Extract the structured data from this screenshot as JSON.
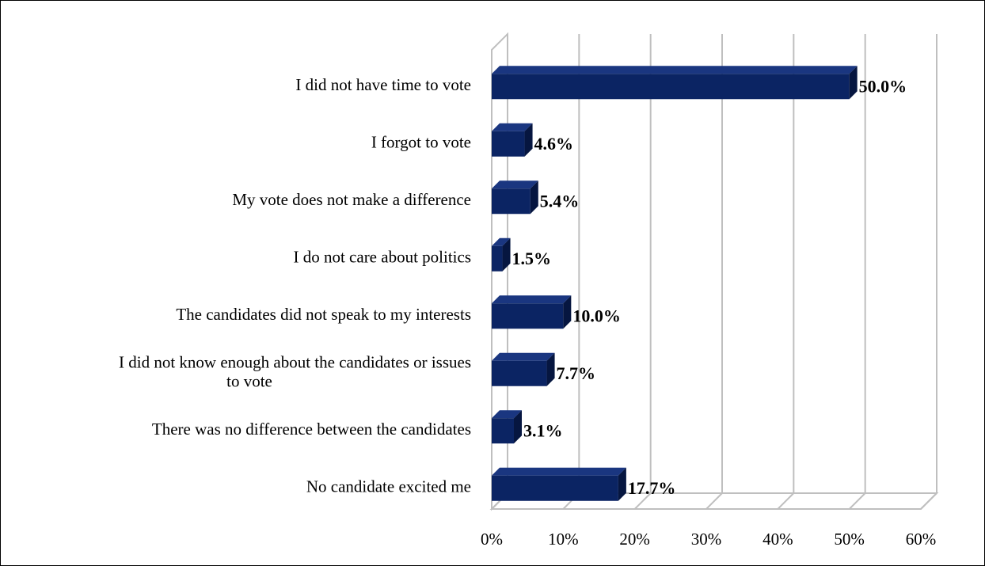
{
  "chart_data": {
    "type": "bar",
    "orientation": "horizontal",
    "style": "3d",
    "categories": [
      "I did not have time to vote",
      "I forgot to vote",
      "My vote does not make a difference",
      "I do not care about politics",
      "The candidates did not speak to my interests",
      "I did not know enough about the candidates or issues to vote",
      "There was no difference between the candidates",
      "No candidate excited me"
    ],
    "values": [
      50.0,
      4.6,
      5.4,
      1.5,
      10.0,
      7.7,
      3.1,
      17.7
    ],
    "data_labels": [
      "50.0%",
      "4.6%",
      "5.4%",
      "1.5%",
      "10.0%",
      "7.7%",
      "3.1%",
      "17.7%"
    ],
    "x_ticks": [
      "0%",
      "10%",
      "20%",
      "30%",
      "40%",
      "50%",
      "60%"
    ],
    "xlim": [
      0,
      60
    ],
    "grid": true,
    "title": "",
    "xlabel": "",
    "ylabel": "",
    "colors": {
      "bar_front": "#0b2463",
      "bar_top": "#1a3680",
      "bar_side": "#061640",
      "grid": "#bfbfbf"
    }
  }
}
